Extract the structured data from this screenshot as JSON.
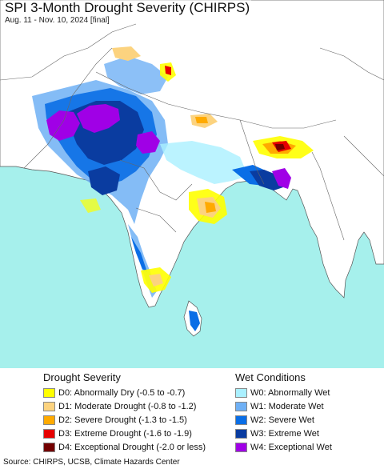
{
  "map": {
    "title": "SPI 3-Month Drought Severity (CHIRPS)",
    "date_range": "Aug. 11 - Nov. 10, 2024 [final]"
  },
  "legend": {
    "drought_heading": "Drought Severity",
    "drought_items": [
      {
        "label": "D0: Abnormally Dry (-0.5 to -0.7)",
        "color": "#ffff00"
      },
      {
        "label": "D1: Moderate Drought (-0.8 to -1.2)",
        "color": "#fcd37f"
      },
      {
        "label": "D2: Severe Drought (-1.3 to -1.5)",
        "color": "#ffaa00"
      },
      {
        "label": "D3: Extreme Drought (-1.6 to -1.9)",
        "color": "#e60000"
      },
      {
        "label": "D4: Exceptional Drought (-2.0 or less)",
        "color": "#730000"
      }
    ],
    "wet_heading": "Wet Conditions",
    "wet_items": [
      {
        "label": "W0: Abnormally Wet",
        "color": "#aaf0ff"
      },
      {
        "label": "W1: Moderate Wet",
        "color": "#6fb0f5"
      },
      {
        "label": "W2: Severe Wet",
        "color": "#0a6ee6"
      },
      {
        "label": "W3: Extreme Wet",
        "color": "#0a3ca0"
      },
      {
        "label": "W4: Exceptional Wet",
        "color": "#a000e6"
      }
    ]
  },
  "source": "Source: CHIRPS, UCSB, Climate Hazards Center",
  "colors": {
    "ocean": "#a6f0ec",
    "land": "#ffffff",
    "border": "#444444"
  }
}
